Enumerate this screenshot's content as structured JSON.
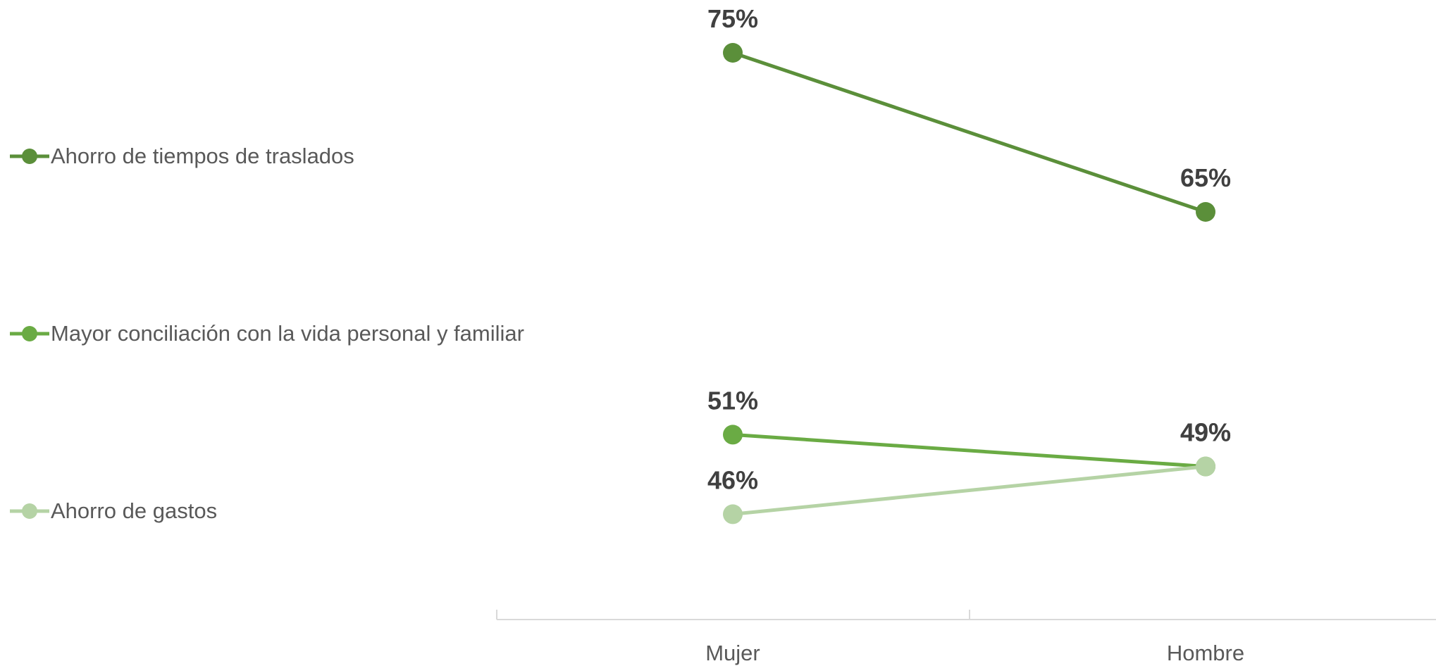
{
  "chart_data": {
    "type": "line",
    "categories": [
      "Mujer",
      "Hombre"
    ],
    "series": [
      {
        "name": "Ahorro de tiempos de traslados",
        "values": [
          75,
          65
        ],
        "color": "#5b8f3a"
      },
      {
        "name": "Mayor conciliación con la vida personal y familiar",
        "values": [
          51,
          49
        ],
        "color": "#6aab44"
      },
      {
        "name": "Ahorro de gastos",
        "values": [
          46,
          49
        ],
        "color": "#b5d3a5"
      }
    ],
    "value_suffix": "%",
    "legend_position": "left",
    "grid": false,
    "title": "",
    "xlabel": "",
    "ylabel": ""
  }
}
